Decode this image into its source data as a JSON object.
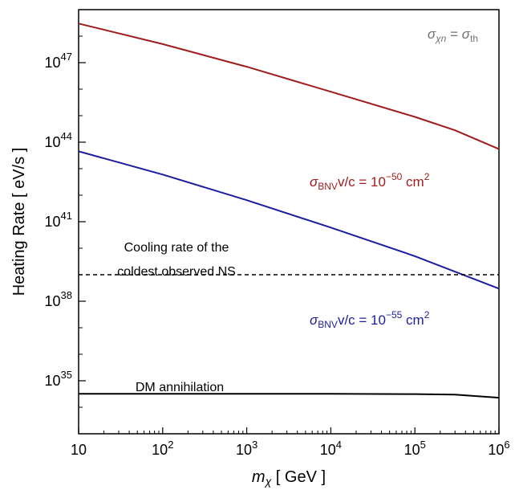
{
  "chart_data": {
    "type": "line",
    "xlabel_math": "m",
    "xlabel_sub": "χ",
    "xlabel_unit": " [ GeV ]",
    "ylabel": "Heating Rate [ eV/s ]",
    "xscale": "log",
    "yscale": "log",
    "xlim": [
      10,
      1000000
    ],
    "ylim": [
      1e+33,
      1e+49
    ],
    "xticks": [
      {
        "value": 10,
        "base": "10",
        "exp": ""
      },
      {
        "value": 100,
        "base": "10",
        "exp": "2"
      },
      {
        "value": 1000,
        "base": "10",
        "exp": "3"
      },
      {
        "value": 10000,
        "base": "10",
        "exp": "4"
      },
      {
        "value": 100000,
        "base": "10",
        "exp": "5"
      },
      {
        "value": 1000000,
        "base": "10",
        "exp": "6"
      }
    ],
    "yticks": [
      {
        "value": 1e+35,
        "base": "10",
        "exp": "35"
      },
      {
        "value": 1e+38,
        "base": "10",
        "exp": "38"
      },
      {
        "value": 1e+41,
        "base": "10",
        "exp": "41"
      },
      {
        "value": 1e+44,
        "base": "10",
        "exp": "44"
      },
      {
        "value": 1e+47,
        "base": "10",
        "exp": "47"
      }
    ],
    "series": [
      {
        "label_sym": "σ",
        "label_sub": "BNV",
        "label_mid": "v/c = 10",
        "label_exp": "−50",
        "label_unit": " cm",
        "label_unit_exp": "2",
        "color": "#a01c1c",
        "style": "solid",
        "x": [
          10,
          100,
          1000,
          10000,
          100000,
          300000,
          1000000
        ],
        "y": [
          3e+48,
          5e+47,
          7e+46,
          8e+45,
          9e+44,
          2.8e+44,
          5.5e+43
        ]
      },
      {
        "label_sym": "σ",
        "label_sub": "BNV",
        "label_mid": "v/c = 10",
        "label_exp": "−55",
        "label_unit": " cm",
        "label_unit_exp": "2",
        "color": "#1c1ca0",
        "style": "solid",
        "x": [
          10,
          100,
          1000,
          10000,
          100000,
          1000000
        ],
        "y": [
          4.5e+43,
          6e+42,
          6.5e+41,
          6e+40,
          5e+39,
          3e+38
        ]
      },
      {
        "label": "Cooling rate of the coldest observed NS",
        "color": "#000000",
        "style": "dashed",
        "x": [
          10,
          1000000
        ],
        "y": [
          1e+39,
          1e+39
        ]
      },
      {
        "label": "DM annihilation",
        "color": "#000000",
        "style": "solid",
        "x": [
          10,
          100,
          1000,
          10000,
          100000,
          300000,
          1000000
        ],
        "y": [
          3.2e+34,
          3.2e+34,
          3.2e+34,
          3.2e+34,
          3.15e+34,
          3e+34,
          2.3e+34
        ]
      }
    ],
    "annotation_top_right": {
      "sym": "σ",
      "sub1": "χn",
      "eq": " = ",
      "sym2": "σ",
      "sub2": "th"
    },
    "annotation_cooling_line1": "Cooling rate of the",
    "annotation_cooling_line2": "coldest observed NS",
    "annotation_dm": "DM annihilation"
  }
}
